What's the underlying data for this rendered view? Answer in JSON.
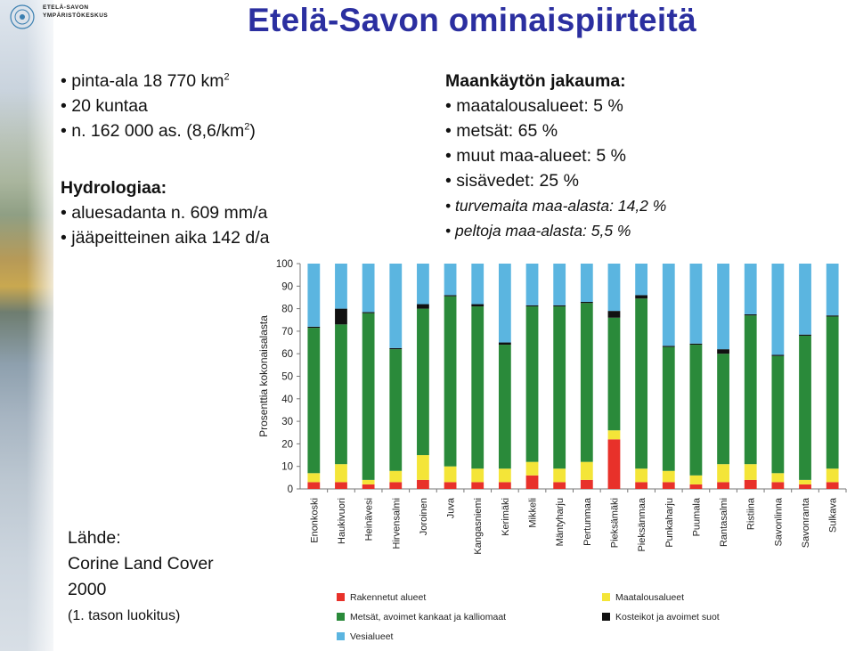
{
  "logo": {
    "text": "ETELÄ-SAVON\nYMPÄRISTÖKESKUS"
  },
  "title": "Etelä-Savon ominaispiirteitä",
  "left_block": {
    "bullets": [
      "pinta-ala 18 770 km",
      "20 kuntaa",
      "n. 162 000 as. (8,6/km"
    ],
    "bullet_suffix_1": "2",
    "bullet_suffix_3_sup": "2",
    "bullet_suffix_3_end": ")",
    "hydro_header": "Hydrologiaa:",
    "hydro_bullets": [
      "aluesadanta n. 609 mm/a",
      "jääpeitteinen aika 142 d/a"
    ]
  },
  "right_block": {
    "header": "Maankäytön jakauma:",
    "bullets": [
      "maatalousalueet: 5 %",
      "metsät: 65 %",
      "muut maa-alueet: 5 %",
      "sisävedet: 25 %"
    ],
    "italic_bullets": [
      "turvemaita maa-alasta: 14,2 %",
      "peltoja maa-alasta: 5,5 %"
    ]
  },
  "source": {
    "label": "Lähde:",
    "line1": "Corine Land Cover",
    "line2": "2000",
    "line3": "(1. tason luokitus)"
  },
  "chart_data": {
    "type": "bar",
    "stacked": true,
    "ylabel": "Prosenttia kokonaisalasta",
    "ylim": [
      0,
      100
    ],
    "yticks": [
      0,
      10,
      20,
      30,
      40,
      50,
      60,
      70,
      80,
      90,
      100
    ],
    "grid": false,
    "legend_position": "bottom",
    "categories": [
      "Enonkoski",
      "Haukivuori",
      "Heinävesi",
      "Hirvensalmi",
      "Joroinen",
      "Juva",
      "Kangasniemi",
      "Kerimäki",
      "Mikkeli",
      "Mäntyharju",
      "Pertunmaa",
      "Pieksämäki",
      "Pieksänmaa",
      "Punkaharju",
      "Puumala",
      "Rantasalmi",
      "Ristiina",
      "Savonlinna",
      "Savonranta",
      "Sulkava"
    ],
    "series": [
      {
        "name": "Rakennetut alueet",
        "color": "#e8312a",
        "values": [
          3,
          3,
          2,
          3,
          4,
          3,
          3,
          3,
          6,
          3,
          4,
          22,
          3,
          3,
          2,
          3,
          4,
          3,
          2,
          3
        ]
      },
      {
        "name": "Maatalousalueet",
        "color": "#f4e538",
        "values": [
          4,
          8,
          2,
          5,
          11,
          7,
          6,
          6,
          6,
          6,
          8,
          4,
          6,
          5,
          4,
          8,
          7,
          4,
          2,
          6
        ]
      },
      {
        "name": "Metsät, avoimet kankaat ja kalliomaat",
        "color": "#2a8a3a",
        "values": [
          64.5,
          62,
          74,
          54,
          65,
          75.5,
          72,
          55,
          69,
          72,
          70.5,
          50,
          75.5,
          55,
          58,
          49,
          66,
          52,
          64,
          67.5
        ]
      },
      {
        "name": "Kosteikot ja avoimet suot",
        "color": "#111111",
        "values": [
          0.5,
          7,
          0.5,
          0.5,
          2,
          0.5,
          1,
          1,
          0.5,
          0.5,
          0.5,
          3,
          1.5,
          0.5,
          0.5,
          2,
          0.5,
          0.5,
          0.5,
          0.5
        ]
      },
      {
        "name": "Vesialueet",
        "color": "#5bb5e0",
        "values": [
          28,
          20,
          21.5,
          37.5,
          18,
          14,
          18,
          35,
          18.5,
          18.5,
          17,
          21,
          14,
          36.5,
          35.5,
          38,
          22.5,
          40.5,
          31.5,
          23
        ]
      }
    ]
  }
}
